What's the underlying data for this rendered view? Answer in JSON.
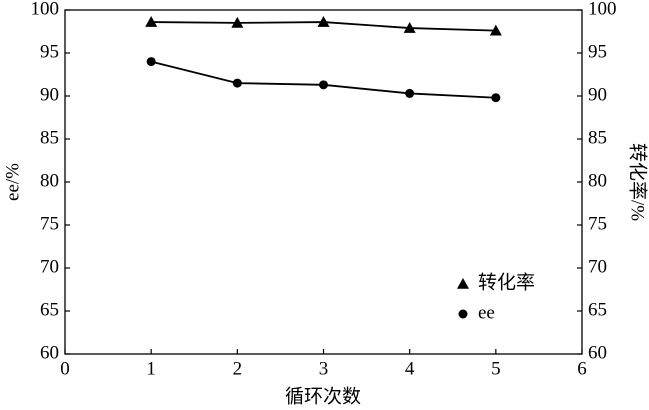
{
  "chart_data": {
    "type": "line",
    "x_label": "循环次数",
    "y_label": "ee/%",
    "y2_label": "转化率/%",
    "x": [
      1,
      2,
      3,
      4,
      5
    ],
    "series": [
      {
        "name": "转化率",
        "color": "#000000",
        "marker": "triangle",
        "axis": "y2",
        "values": [
          98.6,
          98.5,
          98.6,
          97.9,
          97.6
        ]
      },
      {
        "name": "ee",
        "color": "#000000",
        "marker": "circle",
        "values": [
          94.0,
          91.5,
          91.3,
          90.3,
          89.8
        ]
      }
    ],
    "xlim": [
      0,
      6
    ],
    "xticks": [
      0,
      1,
      2,
      3,
      4,
      5,
      6
    ],
    "ylim": [
      60,
      100
    ],
    "yticks": [
      60,
      65,
      70,
      75,
      80,
      85,
      90,
      95,
      100
    ],
    "y2lim": [
      60,
      100
    ],
    "y2ticks": [
      60,
      65,
      70,
      75,
      80,
      85,
      90,
      95,
      100
    ],
    "legend": "lower right"
  }
}
